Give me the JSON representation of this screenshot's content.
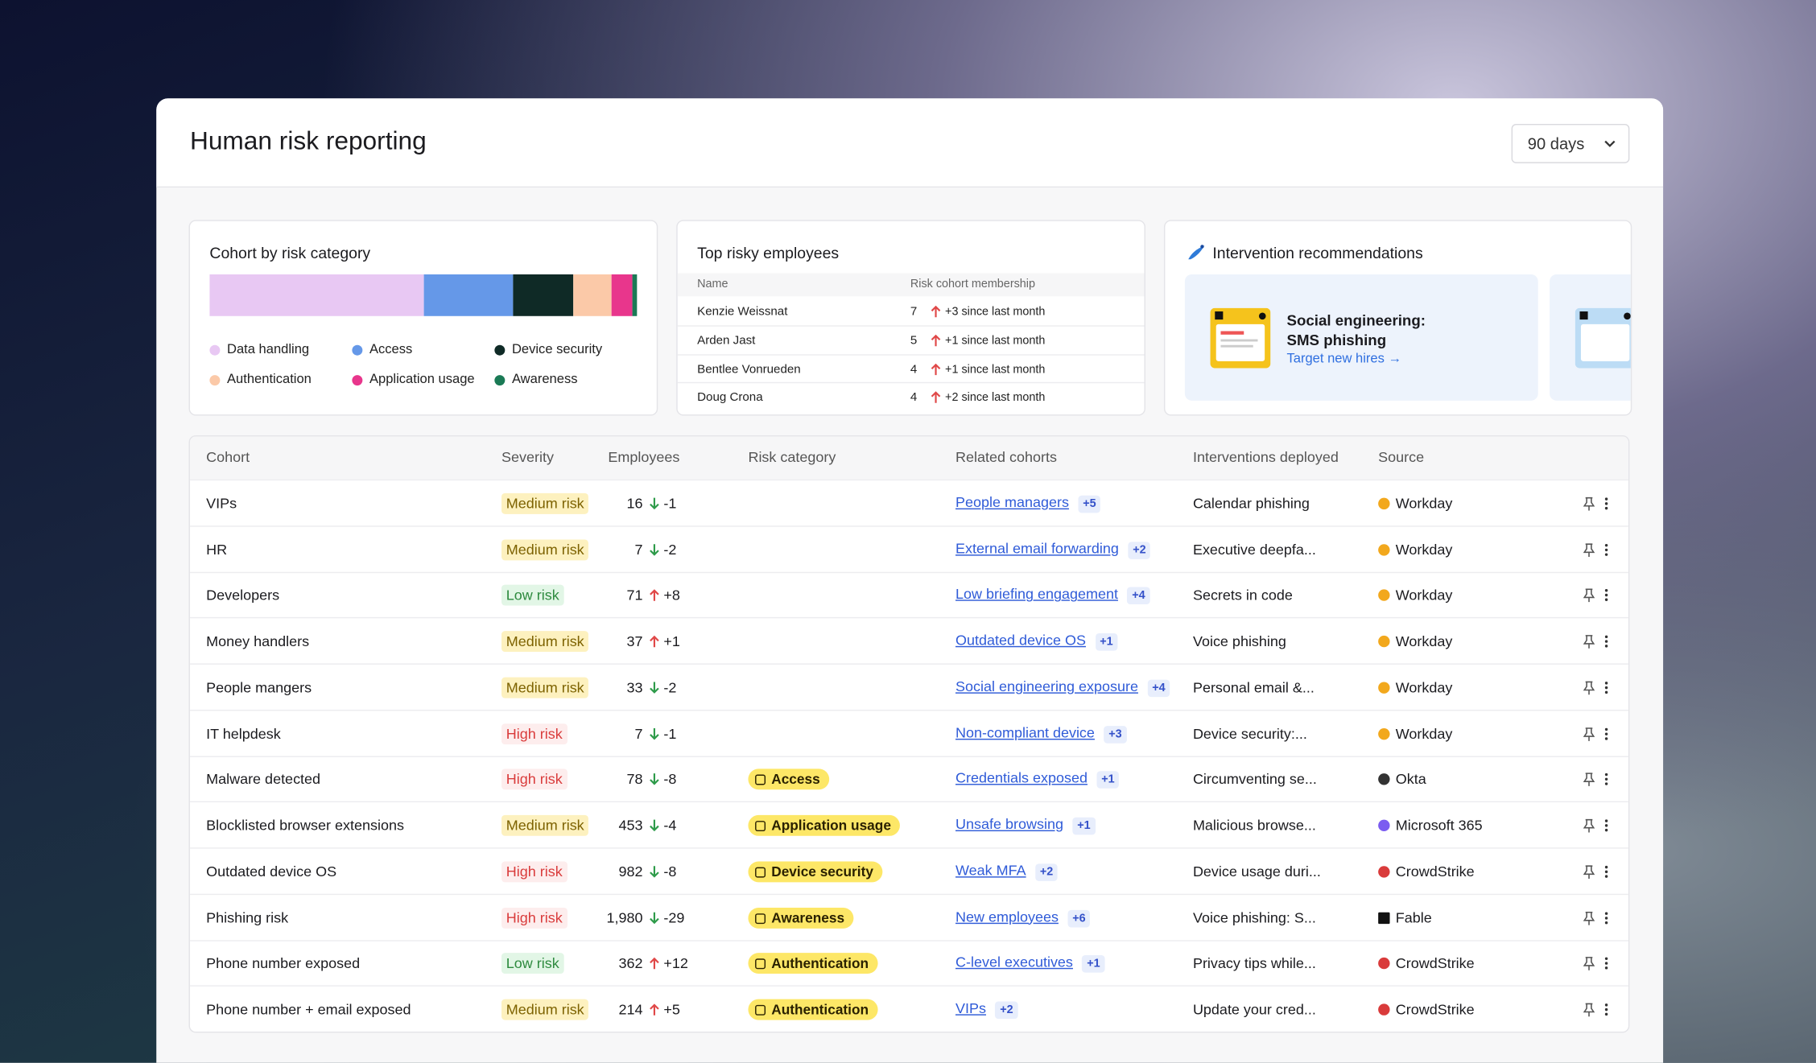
{
  "header": {
    "title": "Human risk reporting",
    "period": "90 days"
  },
  "cohort_card": {
    "title": "Cohort by risk category",
    "segments": [
      {
        "name": "Data handling",
        "color": "#e8c8f3",
        "value": 50
      },
      {
        "name": "Access",
        "color": "#6598e8",
        "value": 21
      },
      {
        "name": "Device security",
        "color": "#0f2a26",
        "value": 14
      },
      {
        "name": "Authentication",
        "color": "#fbc9a8",
        "value": 9
      },
      {
        "name": "Application usage",
        "color": "#e8368c",
        "value": 5
      },
      {
        "name": "Awareness",
        "color": "#1a7a55",
        "value": 1
      }
    ]
  },
  "employees_card": {
    "title": "Top risky employees",
    "columns": [
      "Name",
      "Risk cohort membership"
    ],
    "rows": [
      [
        "Kenzie Weissnat",
        "7",
        "+3 since last month"
      ],
      [
        "Arden Jast",
        "5",
        "+1 since last month"
      ],
      [
        "Bentlee Vonrueden",
        "4",
        "+1 since last month"
      ],
      [
        "Doug Crona",
        "4",
        "+2 since last month"
      ]
    ]
  },
  "interventions_card": {
    "title": "Intervention recommendations",
    "recommendation": {
      "title_line1": "Social engineering:",
      "title_line2": "SMS phishing",
      "action": "Target new hires →"
    }
  },
  "table": {
    "columns": [
      "Cohort",
      "Severity",
      "Employees",
      "Risk category",
      "Related cohorts",
      "Interventions deployed",
      "Source"
    ],
    "rows": [
      {
        "cohort": "VIPs",
        "severity": "Medium risk",
        "employees": "16",
        "change": "-1",
        "related": "People managers",
        "related_more": "+5",
        "interventions": "Calendar phishing",
        "source": "Workday"
      },
      {
        "cohort": "HR",
        "severity": "Medium risk",
        "employees": "7",
        "change": "-2",
        "related": "External email forwarding",
        "related_more": "+2",
        "interventions": "Executive deepfa...",
        "source": "Workday"
      },
      {
        "cohort": "Developers",
        "severity": "Low risk",
        "employees": "71",
        "change": "+8",
        "related": "Low briefing engagement",
        "related_more": "+4",
        "interventions": "Secrets in code",
        "source": "Workday"
      },
      {
        "cohort": "Money handlers",
        "severity": "Medium risk",
        "employees": "37",
        "change": "+1",
        "related": "Outdated device OS",
        "related_more": "+1",
        "interventions": "Voice phishing",
        "source": "Workday"
      },
      {
        "cohort": "People mangers",
        "severity": "Medium risk",
        "employees": "33",
        "change": "-2",
        "related": "Social engineering exposure",
        "related_more": "+4",
        "interventions": "Personal email &...",
        "source": "Workday"
      },
      {
        "cohort": "IT helpdesk",
        "severity": "High risk",
        "employees": "7",
        "change": "-1",
        "related": "Non-compliant device",
        "related_more": "+3",
        "interventions": "Device security:...",
        "source": "Workday"
      },
      {
        "cohort": "Malware detected",
        "severity": "High risk",
        "employees": "78",
        "change": "-8",
        "category": "Access",
        "related": "Credentials exposed",
        "related_more": "+1",
        "interventions": "Circumventing se...",
        "source": "Okta"
      },
      {
        "cohort": "Blocklisted browser extensions",
        "severity": "Medium risk",
        "employees": "453",
        "change": "-4",
        "category": "Application usage",
        "related": "Unsafe browsing",
        "related_more": "+1",
        "interventions": "Malicious browse...",
        "source": "Microsoft 365"
      },
      {
        "cohort": "Outdated device OS",
        "severity": "High risk",
        "employees": "982",
        "change": "-8",
        "category": "Device security",
        "related": "Weak MFA",
        "related_more": "+2",
        "interventions": "Device usage duri...",
        "source": "CrowdStrike"
      },
      {
        "cohort": "Phishing risk",
        "severity": "High risk",
        "employees": "1,980",
        "change": "-29",
        "category": "Awareness",
        "related": "New employees",
        "related_more": "+6",
        "interventions": "Voice phishing: S...",
        "source": "Fable"
      },
      {
        "cohort": "Phone number exposed",
        "severity": "Low risk",
        "employees": "362",
        "change": "+12",
        "category": "Authentication",
        "related": "C-level executives",
        "related_more": "+1",
        "interventions": "Privacy tips while...",
        "source": "CrowdStrike"
      },
      {
        "cohort": "Phone number + email exposed",
        "severity": "Medium risk",
        "employees": "214",
        "change": "+5",
        "category": "Authentication",
        "related": "VIPs",
        "related_more": "+2",
        "interventions": "Update your cred...",
        "source": "CrowdStrike"
      }
    ]
  }
}
